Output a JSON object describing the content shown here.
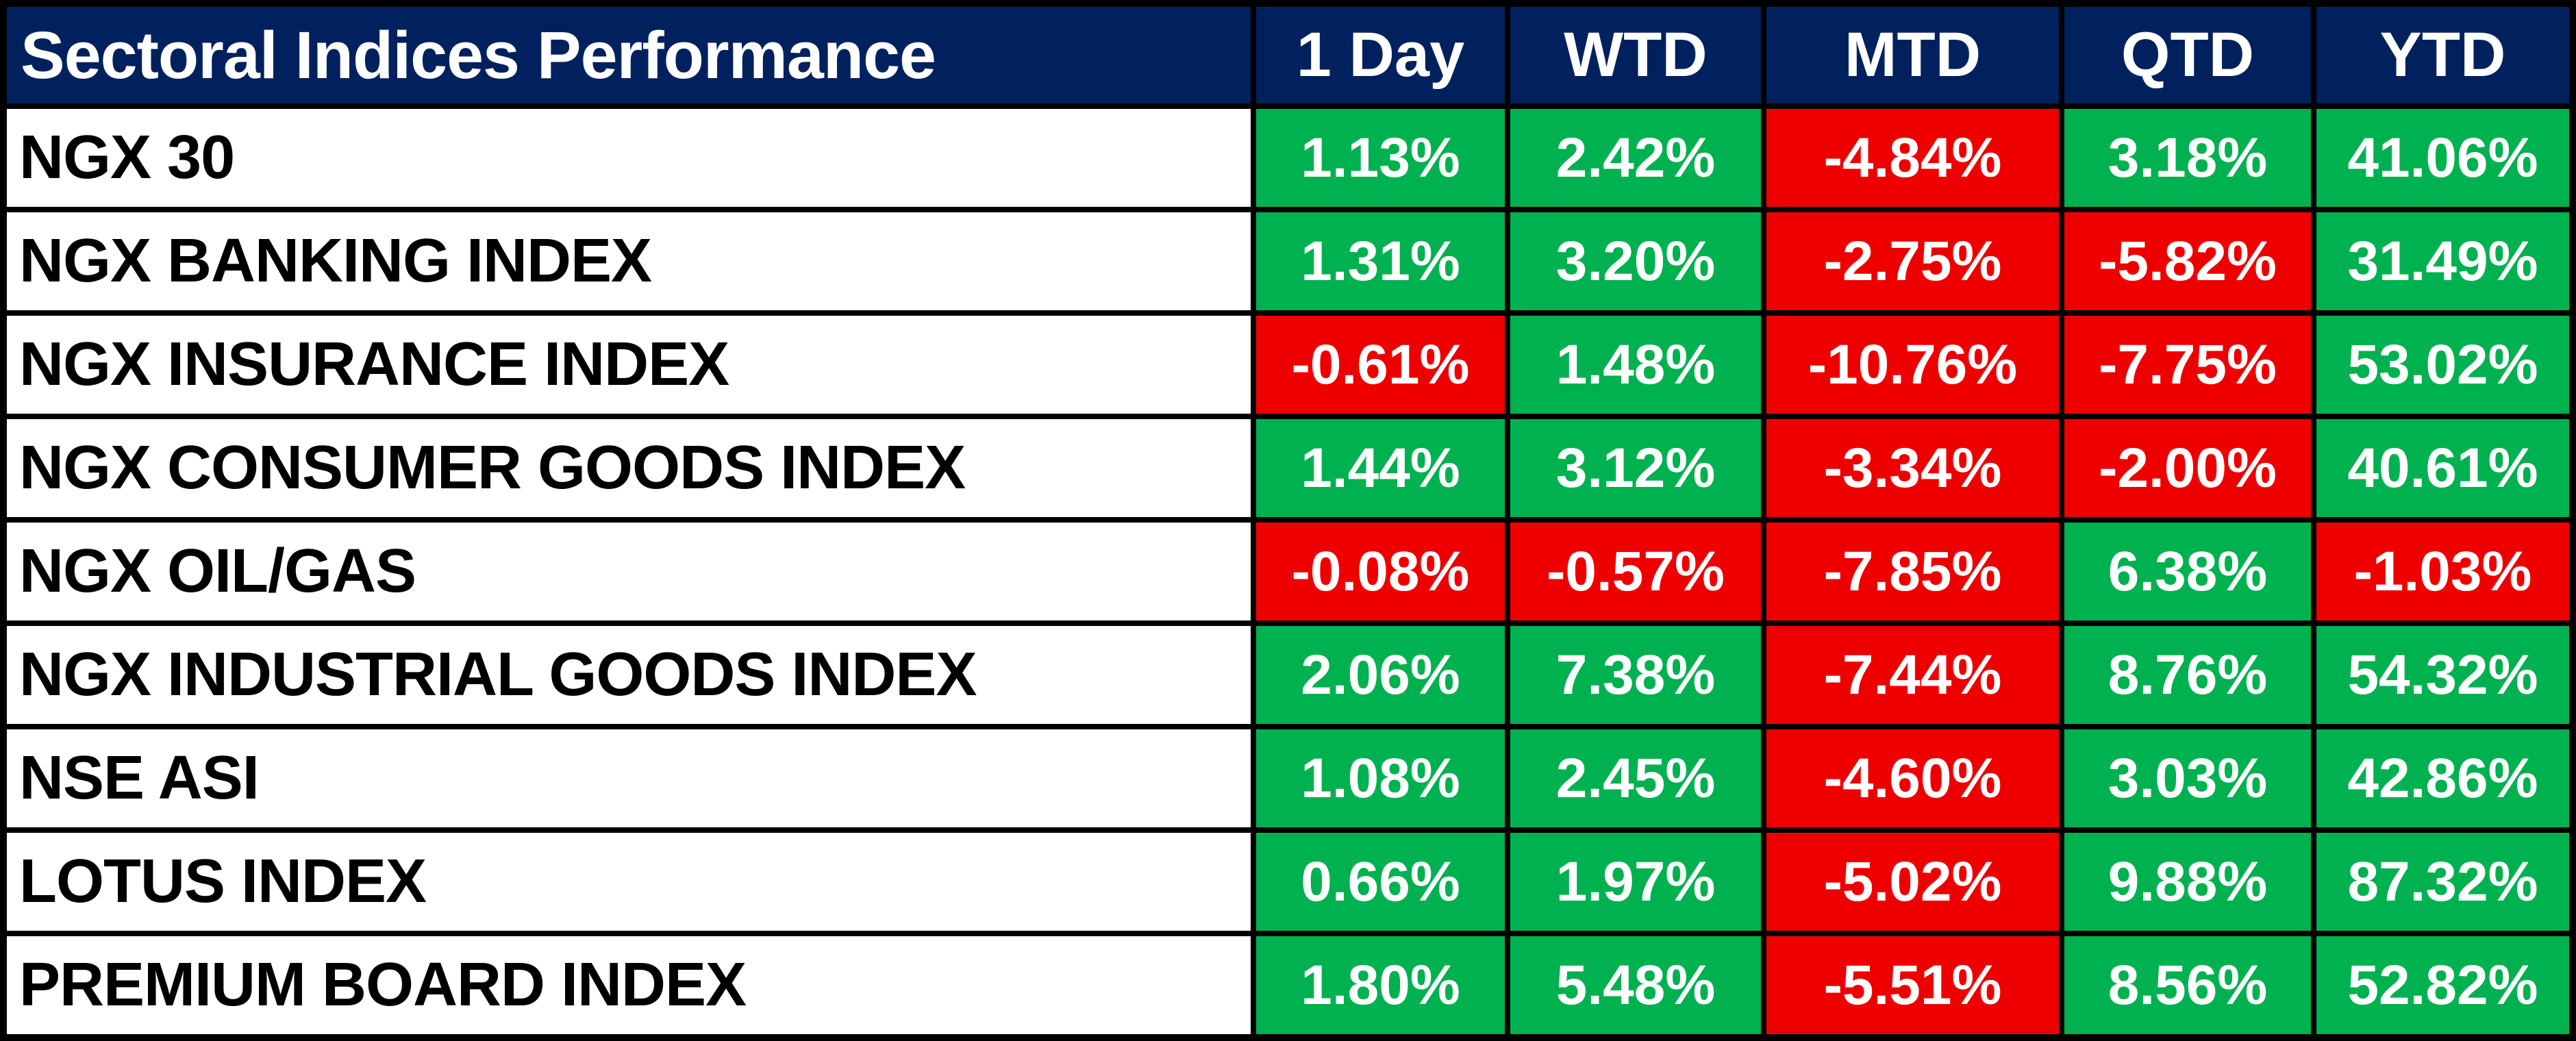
{
  "table": {
    "title": "Sectoral Indices Performance",
    "columns": [
      "1 Day",
      "WTD",
      "MTD",
      "QTD",
      "YTD"
    ],
    "rows": [
      {
        "label": "NGX 30",
        "values": [
          "1.13%",
          "2.42%",
          "-4.84%",
          "3.18%",
          "41.06%"
        ]
      },
      {
        "label": "NGX BANKING INDEX",
        "values": [
          "1.31%",
          "3.20%",
          "-2.75%",
          "-5.82%",
          "31.49%"
        ]
      },
      {
        "label": "NGX INSURANCE INDEX",
        "values": [
          "-0.61%",
          "1.48%",
          "-10.76%",
          "-7.75%",
          "53.02%"
        ]
      },
      {
        "label": "NGX CONSUMER GOODS INDEX",
        "values": [
          "1.44%",
          "3.12%",
          "-3.34%",
          "-2.00%",
          "40.61%"
        ]
      },
      {
        "label": "NGX OIL/GAS",
        "values": [
          "-0.08%",
          "-0.57%",
          "-7.85%",
          "6.38%",
          "-1.03%"
        ]
      },
      {
        "label": "NGX INDUSTRIAL GOODS INDEX",
        "values": [
          "2.06%",
          "7.38%",
          "-7.44%",
          "8.76%",
          "54.32%"
        ]
      },
      {
        "label": "NSE ASI",
        "values": [
          "1.08%",
          "2.45%",
          "-4.60%",
          "3.03%",
          "42.86%"
        ]
      },
      {
        "label": "LOTUS INDEX",
        "values": [
          "0.66%",
          "1.97%",
          "-5.02%",
          "9.88%",
          "87.32%"
        ]
      },
      {
        "label": "PREMIUM BOARD INDEX",
        "values": [
          "1.80%",
          "5.48%",
          "-5.51%",
          "8.56%",
          "52.82%"
        ]
      }
    ]
  },
  "colors": {
    "positive": "#00B150",
    "negative": "#EE0000",
    "header_bg": "#00215E",
    "header_text": "#FFFFFF",
    "row_label_bg": "#FFFFFF",
    "row_label_text": "#000000",
    "grid_line": "#000000"
  },
  "chart_data": {
    "type": "table",
    "title": "Sectoral Indices Performance",
    "columns": [
      "1 Day",
      "WTD",
      "MTD",
      "QTD",
      "YTD"
    ],
    "units": "percent",
    "color_rule": "cell green when value >= 0, red when value < 0",
    "series": [
      {
        "name": "NGX 30",
        "values": [
          1.13,
          2.42,
          -4.84,
          3.18,
          41.06
        ]
      },
      {
        "name": "NGX BANKING INDEX",
        "values": [
          1.31,
          3.2,
          -2.75,
          -5.82,
          31.49
        ]
      },
      {
        "name": "NGX INSURANCE INDEX",
        "values": [
          -0.61,
          1.48,
          -10.76,
          -7.75,
          53.02
        ]
      },
      {
        "name": "NGX CONSUMER GOODS INDEX",
        "values": [
          1.44,
          3.12,
          -3.34,
          -2.0,
          40.61
        ]
      },
      {
        "name": "NGX OIL/GAS",
        "values": [
          -0.08,
          -0.57,
          -7.85,
          6.38,
          -1.03
        ]
      },
      {
        "name": "NGX INDUSTRIAL GOODS INDEX",
        "values": [
          2.06,
          7.38,
          -7.44,
          8.76,
          54.32
        ]
      },
      {
        "name": "NSE ASI",
        "values": [
          1.08,
          2.45,
          -4.6,
          3.03,
          42.86
        ]
      },
      {
        "name": "LOTUS INDEX",
        "values": [
          0.66,
          1.97,
          -5.02,
          9.88,
          87.32
        ]
      },
      {
        "name": "PREMIUM BOARD INDEX",
        "values": [
          1.8,
          5.48,
          -5.51,
          8.56,
          52.82
        ]
      }
    ]
  }
}
